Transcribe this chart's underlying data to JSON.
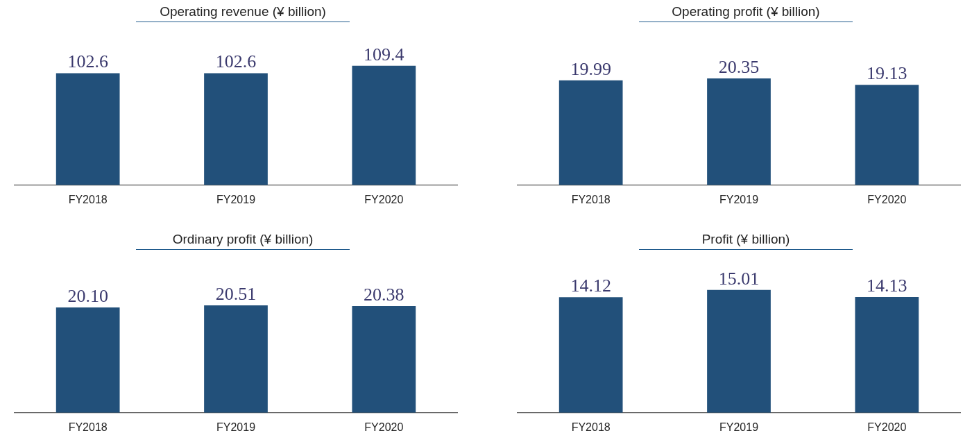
{
  "chart_data": [
    {
      "type": "bar",
      "title": "Operating revenue (¥ billion)",
      "categories": [
        "FY2018",
        "FY2019",
        "FY2020"
      ],
      "values": [
        102.6,
        102.6,
        109.4
      ],
      "value_labels": [
        "102.6",
        "102.6",
        "109.4"
      ],
      "color": "#22507a",
      "tick_labels": "x",
      "legend": false
    },
    {
      "type": "bar",
      "title": "Operating profit (¥ billion)",
      "categories": [
        "FY2018",
        "FY2019",
        "FY2020"
      ],
      "values": [
        19.99,
        20.35,
        19.13
      ],
      "value_labels": [
        "19.99",
        "20.35",
        "19.13"
      ],
      "color": "#22507a",
      "tick_labels": "x",
      "legend": false
    },
    {
      "type": "bar",
      "title": "Ordinary profit (¥ billion)",
      "categories": [
        "FY2018",
        "FY2019",
        "FY2020"
      ],
      "values": [
        20.1,
        20.51,
        20.38
      ],
      "value_labels": [
        "20.10",
        "20.51",
        "20.38"
      ],
      "color": "#22507a",
      "tick_labels": "x",
      "legend": false
    },
    {
      "type": "bar",
      "title": "Profit (¥ billion)",
      "categories": [
        "FY2018",
        "FY2019",
        "FY2020"
      ],
      "values": [
        14.12,
        15.01,
        14.13
      ],
      "value_labels": [
        "14.12",
        "15.01",
        "14.13"
      ],
      "color": "#22507a",
      "tick_labels": "x",
      "legend": false
    }
  ]
}
